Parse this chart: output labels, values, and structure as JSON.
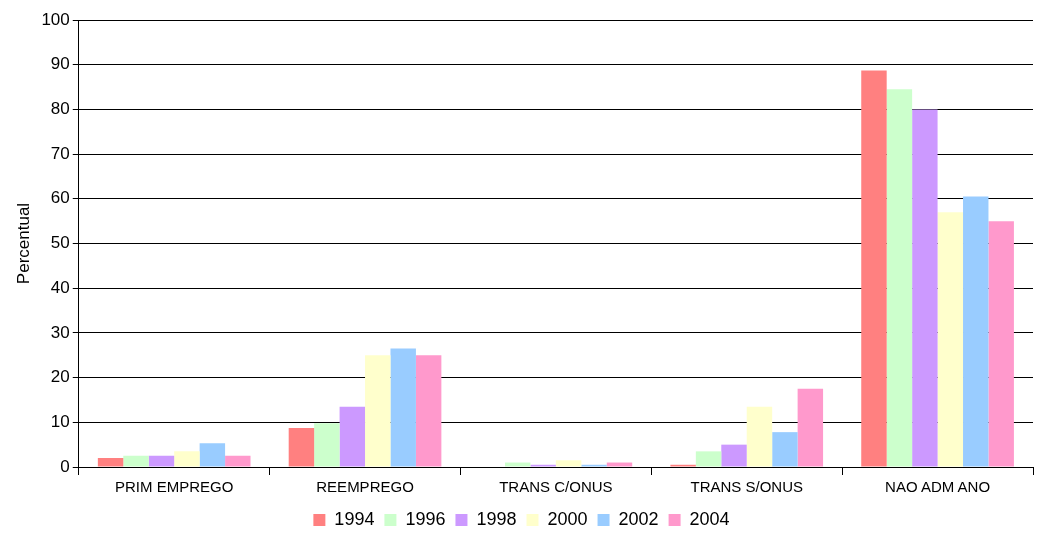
{
  "chart_data": {
    "type": "bar",
    "ylabel": "Percentual",
    "categories": [
      "PRIM EMPREGO",
      "REEMPREGO",
      "TRANS C/ONUS",
      "TRANS S/ONUS",
      "NAO ADM ANO"
    ],
    "series": [
      {
        "name": "1994",
        "color": "#ff8080",
        "values": [
          2,
          8.7,
          0,
          0.5,
          88.7
        ]
      },
      {
        "name": "1996",
        "color": "#ccffcc",
        "values": [
          2.5,
          9.8,
          1,
          3.5,
          84.5
        ]
      },
      {
        "name": "1998",
        "color": "#cc99ff",
        "values": [
          2.5,
          13.5,
          0.5,
          5,
          80
        ]
      },
      {
        "name": "2000",
        "color": "#ffffcc",
        "values": [
          3.5,
          25,
          1.5,
          13.5,
          57
        ]
      },
      {
        "name": "2002",
        "color": "#99ccff",
        "values": [
          5.3,
          26.5,
          0.5,
          7.8,
          60.5
        ]
      },
      {
        "name": "2004",
        "color": "#ff99cc",
        "values": [
          2.5,
          25,
          1,
          17.5,
          55
        ]
      }
    ],
    "ylim": [
      0,
      100
    ],
    "yticks": [
      0,
      10,
      20,
      30,
      40,
      50,
      60,
      70,
      80,
      90,
      100
    ],
    "grid": "y",
    "legend": "bottom"
  }
}
